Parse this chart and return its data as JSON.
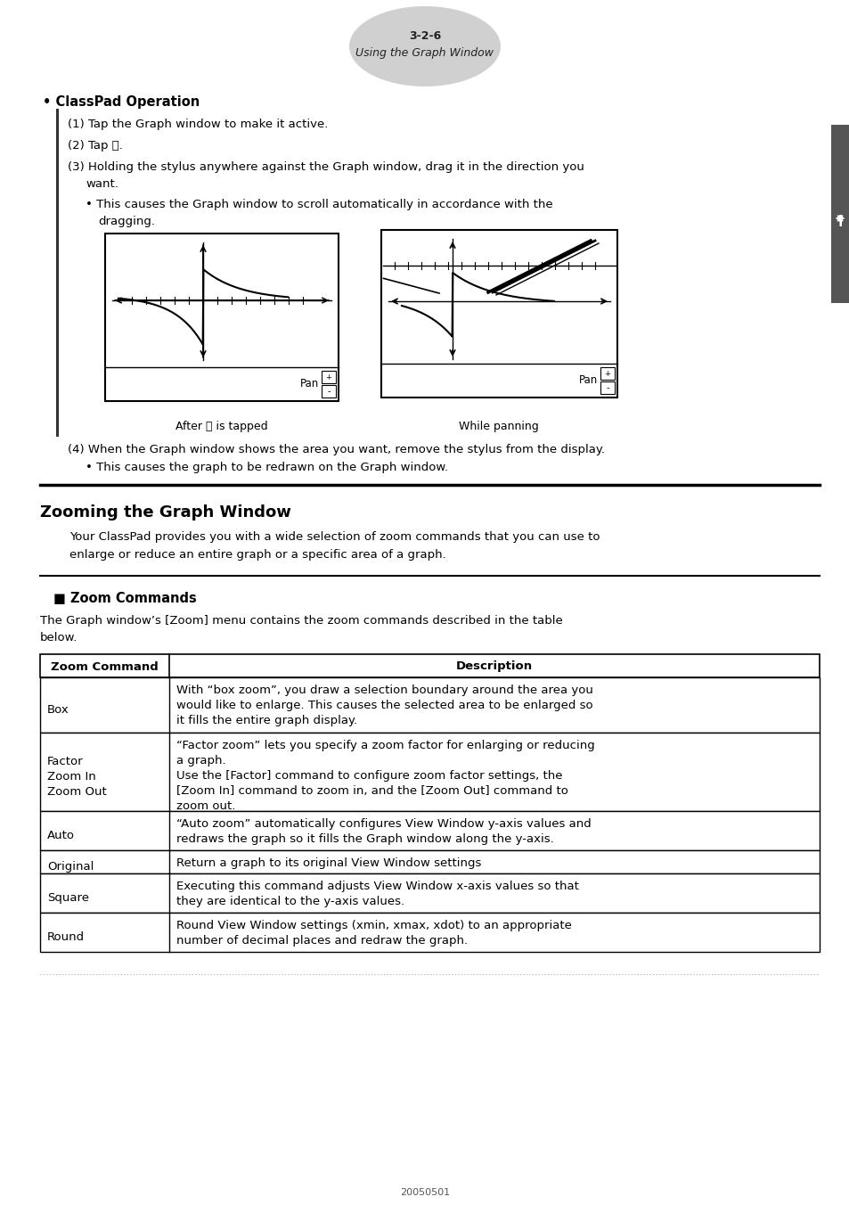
{
  "page_number": "3-2-6",
  "page_subtitle": "Using the Graph Window",
  "bg_color": "#ffffff",
  "section1_title": "• ClassPad Operation",
  "step1": "(1) Tap the Graph window to make it active.",
  "step2_a": "(2) Tap ",
  "step2_b": ".",
  "step3_a": "(3) Holding the stylus anywhere against the Graph window, drag it in the direction you",
  "step3_b": "want.",
  "bullet1_a": "• This causes the Graph window to scroll automatically in accordance with the",
  "bullet1_b": "dragging.",
  "caption_left": "After ",
  "caption_left_b": " is tapped",
  "caption_right": "While panning",
  "step4": "(4) When the Graph window shows the area you want, remove the stylus from the display.",
  "bullet2": "• This causes the graph to be redrawn on the Graph window.",
  "section2_title": "Zooming the Graph Window",
  "section2_body1": "Your ClassPad provides you with a wide selection of zoom commands that you can use to",
  "section2_body2": "enlarge or reduce an entire graph or a specific area of a graph.",
  "section3_title": "■ Zoom Commands",
  "section3_intro1": "The Graph window’s [Zoom] menu contains the zoom commands described in the table",
  "section3_intro2": "below.",
  "table_col1_header": "Zoom Command",
  "table_col2_header": "Description",
  "table_rows": [
    {
      "cmd": "Box",
      "desc": [
        "With “box zoom”, you draw a selection boundary around the area you",
        "would like to enlarge. This causes the selected area to be enlarged so",
        "it fills the entire graph display."
      ]
    },
    {
      "cmd": "Factor\nZoom In\nZoom Out",
      "desc": [
        "“Factor zoom” lets you specify a zoom factor for enlarging or reducing",
        "a graph.",
        "Use the [Factor] command to configure zoom factor settings, the",
        "[Zoom In] command to zoom in, and the [Zoom Out] command to",
        "zoom out."
      ]
    },
    {
      "cmd": "Auto",
      "desc": [
        "“Auto zoom” automatically configures View Window y-axis values and",
        "redraws the graph so it fills the Graph window along the y-axis."
      ]
    },
    {
      "cmd": "Original",
      "desc": [
        "Return a graph to its original View Window settings"
      ]
    },
    {
      "cmd": "Square",
      "desc": [
        "Executing this command adjusts View Window x-axis values so that",
        "they are identical to the y-axis values."
      ]
    },
    {
      "cmd": "Round",
      "desc": [
        "Round View Window settings (xmin, xmax, xdot) to an appropriate",
        "number of decimal places and redraw the graph."
      ]
    }
  ],
  "footer_text": "20050501"
}
